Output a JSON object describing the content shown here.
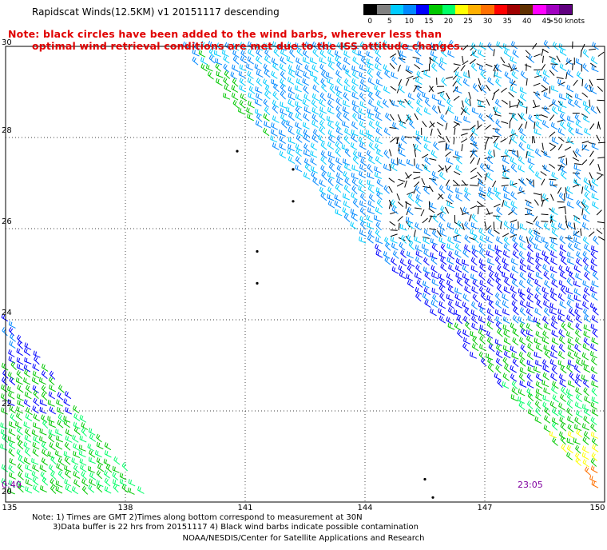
{
  "title": "Rapidscat Winds(12.5KM) v1 20151117 descending",
  "warning": {
    "line1": "Note: black circles have been added to the wind barbs, wherever less than",
    "line2": "optimal wind retrieval conditions are met due to the ISS attitude changes."
  },
  "legend": {
    "colors": [
      "#000000",
      "#808080",
      "#00ccff",
      "#0088ff",
      "#0000ff",
      "#00c800",
      "#00ff66",
      "#ffff00",
      "#ffb000",
      "#ff7000",
      "#ff0000",
      "#a00000",
      "#603000",
      "#ff00ff",
      "#a000c0",
      "#600080"
    ],
    "labels": [
      {
        "t": "0",
        "k": 0
      },
      {
        "t": "5",
        "k": 1
      },
      {
        "t": "10",
        "k": 2
      },
      {
        "t": "15",
        "k": 3
      },
      {
        "t": "20",
        "k": 4
      },
      {
        "t": "25",
        "k": 5
      },
      {
        "t": "30",
        "k": 6
      },
      {
        "t": "35",
        "k": 7
      },
      {
        "t": "40",
        "k": 8
      },
      {
        "t": "45",
        "k": 9
      },
      {
        "t": ">50 knots",
        "k": 10
      }
    ]
  },
  "axes": {
    "lon": [
      "135",
      "138",
      "141",
      "144",
      "147",
      "150"
    ],
    "lat": [
      "30",
      "28",
      "26",
      "24",
      "22",
      "20"
    ],
    "lon_range": [
      135,
      150
    ],
    "lat_range": [
      20,
      30
    ]
  },
  "pass_times": {
    "left": "0:40",
    "right": "23:05"
  },
  "footnote": {
    "line1": "Note: 1) Times are GMT 2)Times along bottom correspond to measurement at 30N",
    "line2": "3)Data buffer is 22 hrs from 20151117 4) Black wind barbs indicate possible contamination"
  },
  "credit": "NOAA/NESDIS/Center for Satellite Applications and Research",
  "islands": [
    {
      "lon": 142.2,
      "lat": 27.3
    },
    {
      "lon": 142.2,
      "lat": 26.6
    },
    {
      "lon": 141.3,
      "lat": 25.5
    },
    {
      "lon": 141.3,
      "lat": 24.8
    },
    {
      "lon": 140.8,
      "lat": 27.7
    },
    {
      "lon": 145.7,
      "lat": 20.1
    },
    {
      "lon": 145.5,
      "lat": 20.5
    }
  ]
}
